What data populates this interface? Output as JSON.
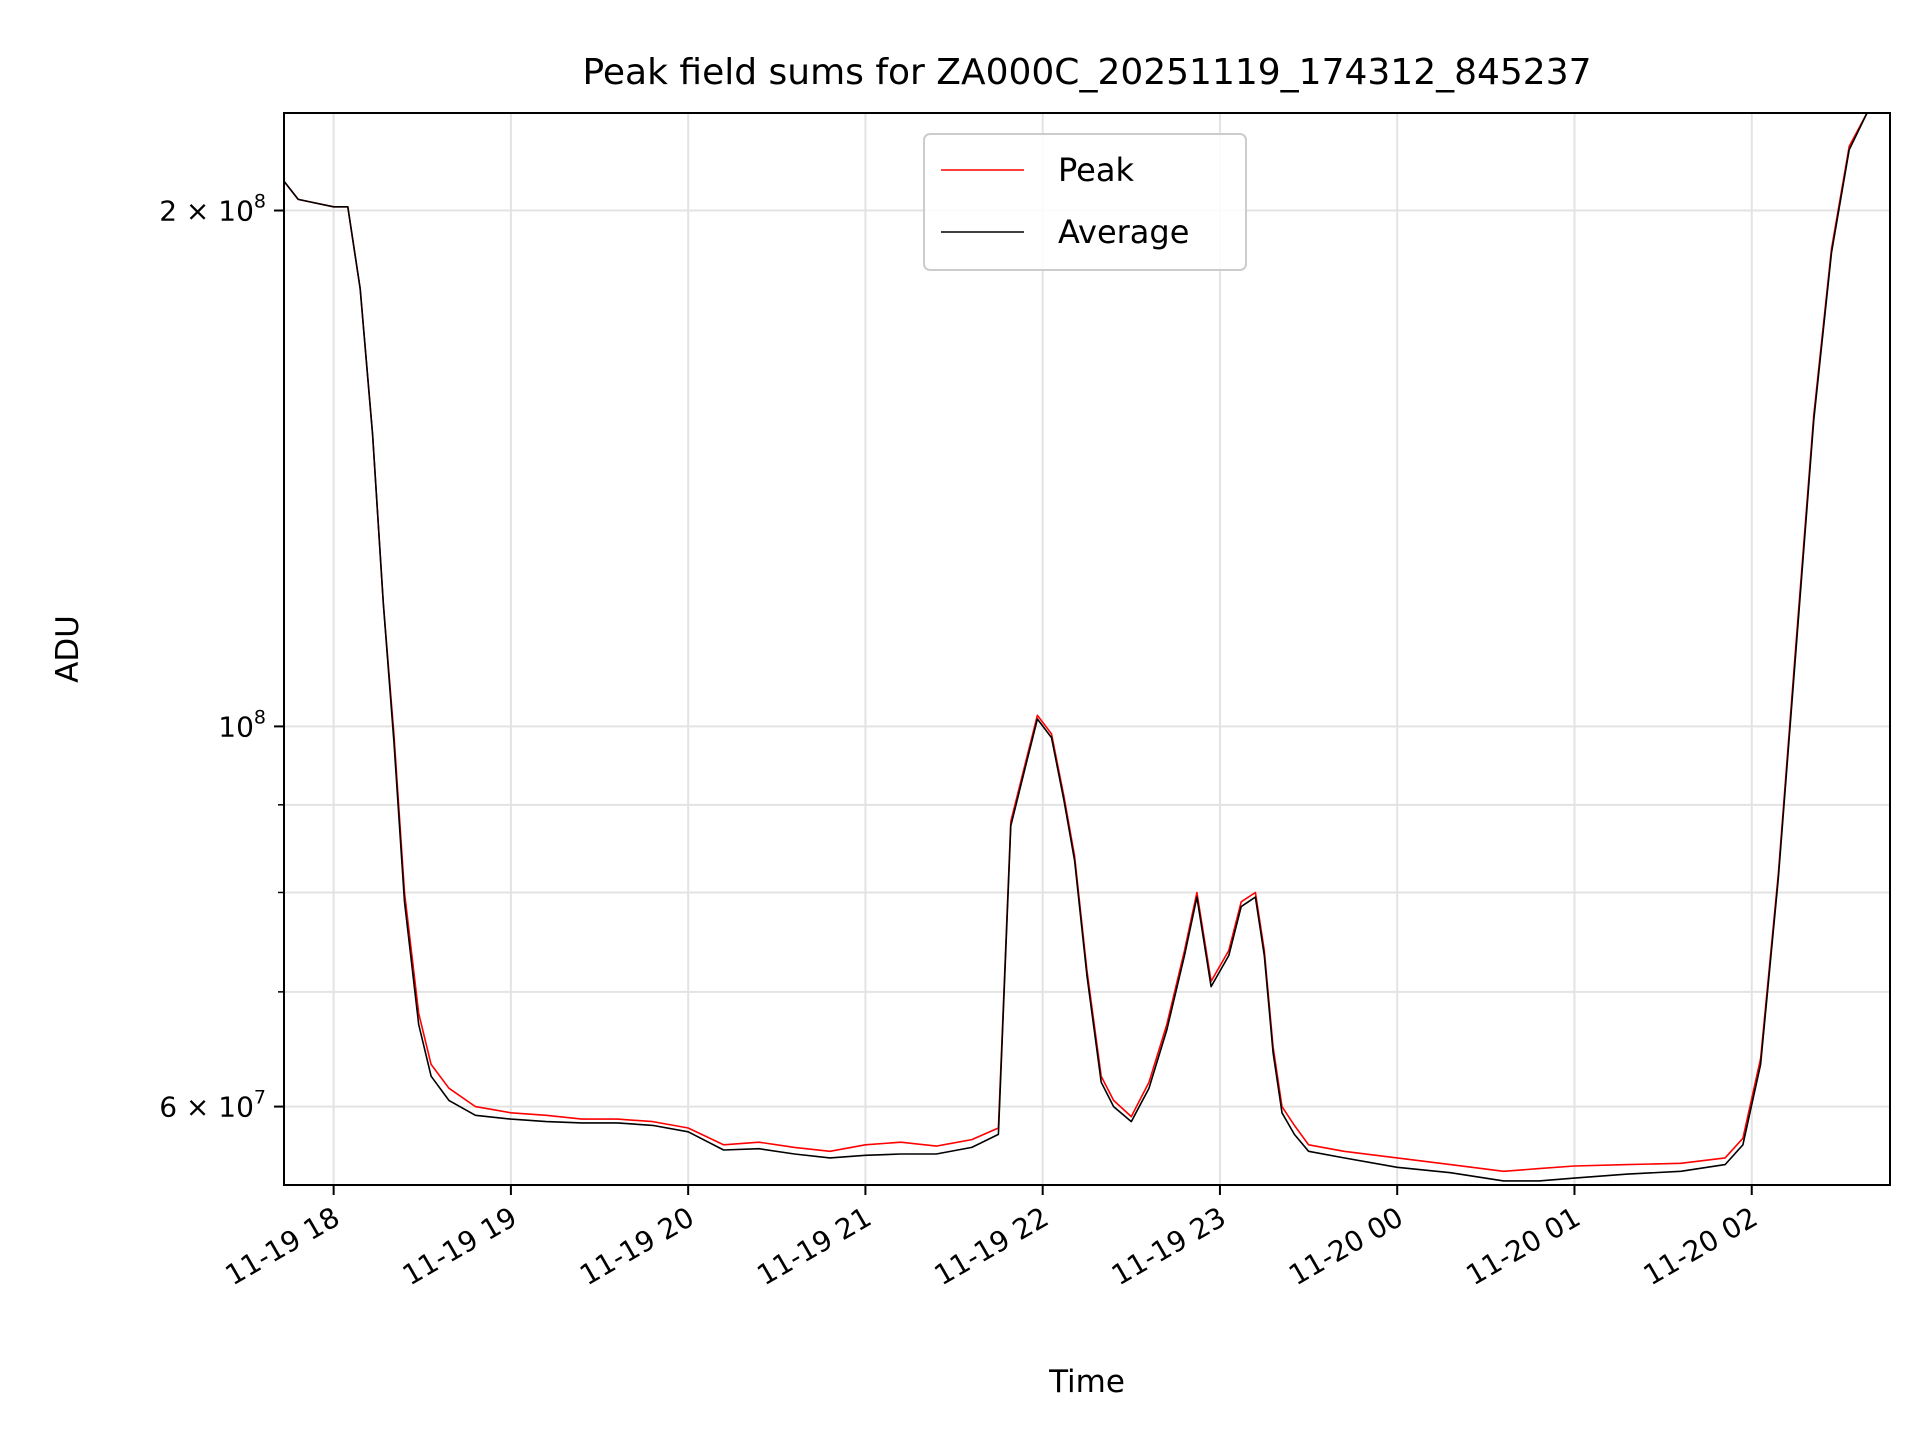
{
  "chart_data": {
    "type": "line",
    "title": "Peak field sums for ZA000C_20251119_174312_845237",
    "xlabel": "Time",
    "ylabel": "ADU",
    "yscale": "log",
    "ylim": [
      54000000,
      228000000
    ],
    "xlim_hours": [
      17.72,
      26.78
    ],
    "grid": true,
    "legend_position": "top-center",
    "x_ticks": [
      {
        "hour": 18,
        "label": "11-19 18"
      },
      {
        "hour": 19,
        "label": "11-19 19"
      },
      {
        "hour": 20,
        "label": "11-19 20"
      },
      {
        "hour": 21,
        "label": "11-19 21"
      },
      {
        "hour": 22,
        "label": "11-19 22"
      },
      {
        "hour": 23,
        "label": "11-19 23"
      },
      {
        "hour": 24,
        "label": "11-20 00"
      },
      {
        "hour": 25,
        "label": "11-20 01"
      },
      {
        "hour": 26,
        "label": "11-20 02"
      }
    ],
    "y_ticks_major": [
      {
        "value": 60000000,
        "mantissa": "6 × 10",
        "exponent": "7"
      },
      {
        "value": 100000000,
        "mantissa": "10",
        "exponent": "8"
      },
      {
        "value": 200000000,
        "mantissa": "2 × 10",
        "exponent": "8"
      }
    ],
    "y_ticks_minor": [
      70000000,
      80000000,
      90000000
    ],
    "series": [
      {
        "name": "Peak",
        "color": "#ff0000",
        "x_hours": [
          17.72,
          17.8,
          17.9,
          18.0,
          18.08,
          18.15,
          18.22,
          18.28,
          18.34,
          18.4,
          18.48,
          18.55,
          18.65,
          18.8,
          19.0,
          19.2,
          19.4,
          19.6,
          19.8,
          20.0,
          20.2,
          20.4,
          20.6,
          20.8,
          21.0,
          21.2,
          21.4,
          21.6,
          21.75,
          21.82,
          21.9,
          21.97,
          22.05,
          22.12,
          22.18,
          22.25,
          22.33,
          22.4,
          22.5,
          22.6,
          22.7,
          22.8,
          22.87,
          22.95,
          23.05,
          23.12,
          23.2,
          23.25,
          23.3,
          23.35,
          23.42,
          23.5,
          23.7,
          24.0,
          24.3,
          24.6,
          24.8,
          25.0,
          25.3,
          25.6,
          25.85,
          25.95,
          26.05,
          26.15,
          26.25,
          26.35,
          26.45,
          26.55,
          26.65,
          26.78
        ],
        "values": [
          208000000,
          203000000,
          202000000,
          201000000,
          201000000,
          180000000,
          148000000,
          118000000,
          99000000,
          80000000,
          68000000,
          63500000,
          61500000,
          60000000,
          59500000,
          59300000,
          59000000,
          59000000,
          58800000,
          58300000,
          57000000,
          57200000,
          56800000,
          56500000,
          57000000,
          57200000,
          56900000,
          57400000,
          58300000,
          88000000,
          95000000,
          101500000,
          99000000,
          91000000,
          84000000,
          72000000,
          62500000,
          60500000,
          59200000,
          62000000,
          67000000,
          74000000,
          80000000,
          71000000,
          74000000,
          79000000,
          80000000,
          74000000,
          65000000,
          60000000,
          58500000,
          57000000,
          56500000,
          56000000,
          55500000,
          55000000,
          55200000,
          55400000,
          55500000,
          55600000,
          56000000,
          57500000,
          64000000,
          82000000,
          112000000,
          152000000,
          190000000,
          218000000,
          228000000,
          228000000
        ]
      },
      {
        "name": "Average",
        "color": "#000000",
        "x_hours": [
          17.72,
          17.8,
          17.9,
          18.0,
          18.08,
          18.15,
          18.22,
          18.28,
          18.34,
          18.4,
          18.48,
          18.55,
          18.65,
          18.8,
          19.0,
          19.2,
          19.4,
          19.6,
          19.8,
          20.0,
          20.2,
          20.4,
          20.6,
          20.8,
          21.0,
          21.2,
          21.4,
          21.6,
          21.75,
          21.82,
          21.9,
          21.97,
          22.05,
          22.12,
          22.18,
          22.25,
          22.33,
          22.4,
          22.5,
          22.6,
          22.7,
          22.8,
          22.87,
          22.95,
          23.05,
          23.12,
          23.2,
          23.25,
          23.3,
          23.35,
          23.42,
          23.5,
          23.7,
          24.0,
          24.3,
          24.6,
          24.8,
          25.0,
          25.3,
          25.6,
          25.85,
          25.95,
          26.05,
          26.15,
          26.25,
          26.35,
          26.45,
          26.55,
          26.65,
          26.78
        ],
        "values": [
          208000000,
          203000000,
          202000000,
          201000000,
          201000000,
          180000000,
          148000000,
          118000000,
          98000000,
          79000000,
          67000000,
          62500000,
          60500000,
          59300000,
          59000000,
          58800000,
          58700000,
          58700000,
          58500000,
          58000000,
          56600000,
          56700000,
          56300000,
          56000000,
          56200000,
          56300000,
          56300000,
          56800000,
          57800000,
          87500000,
          94500000,
          101000000,
          98500000,
          90500000,
          83500000,
          71500000,
          62000000,
          60000000,
          58800000,
          61500000,
          66500000,
          73500000,
          79500000,
          70500000,
          73500000,
          78500000,
          79500000,
          73500000,
          64500000,
          59500000,
          57800000,
          56500000,
          56000000,
          55300000,
          54900000,
          54300000,
          54300000,
          54500000,
          54800000,
          55000000,
          55500000,
          57000000,
          63500000,
          81500000,
          111000000,
          151000000,
          189000000,
          217000000,
          228000000,
          228000000
        ]
      }
    ]
  }
}
